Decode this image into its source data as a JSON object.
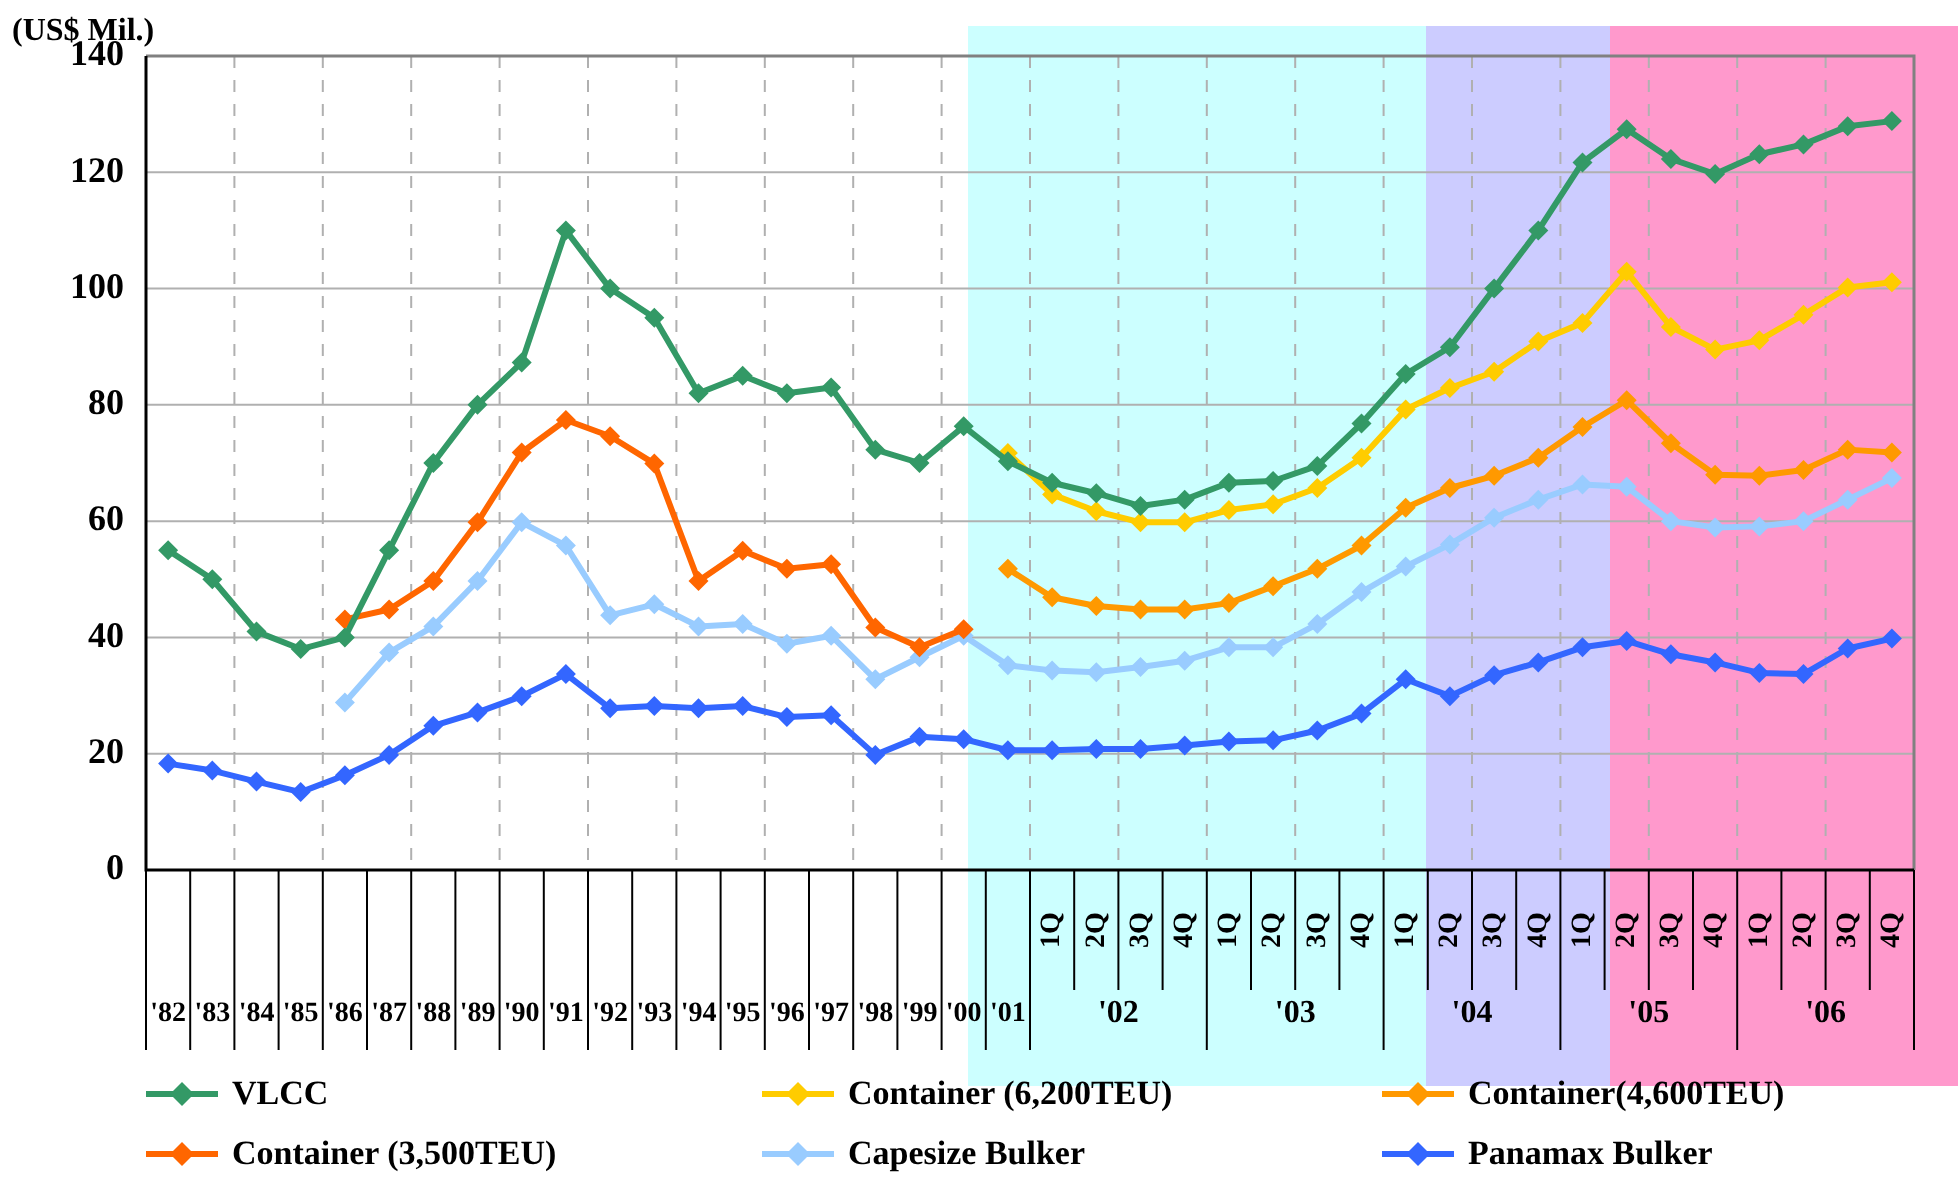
{
  "chart_data": {
    "type": "line",
    "ylabel": "(US$ Mil.)",
    "categories": [
      "'82",
      "'83",
      "'84",
      "'85",
      "'86",
      "'87",
      "'88",
      "'89",
      "'90",
      "'91",
      "'92",
      "'93",
      "'94",
      "'95",
      "'96",
      "'97",
      "'98",
      "'99",
      "'00",
      "'01",
      "1Q",
      "2Q",
      "3Q",
      "4Q",
      "1Q",
      "2Q",
      "3Q",
      "4Q",
      "1Q",
      "2Q",
      "3Q",
      "4Q",
      "1Q",
      "2Q",
      "3Q",
      "4Q",
      "1Q",
      "2Q",
      "3Q",
      "4Q"
    ],
    "series": [
      {
        "name": "VLCC",
        "color": "#339966",
        "values": [
          55,
          50,
          41,
          38,
          40,
          55,
          70,
          80,
          87.3,
          110,
          100,
          95,
          82,
          85,
          82,
          83,
          72.3,
          70,
          76.3,
          70.3,
          66.6,
          64.8,
          62.6,
          63.7,
          66.6,
          66.9,
          69.5,
          76.8,
          85.3,
          89.9,
          100,
          110,
          121.7,
          127.4,
          122.3,
          119.7,
          123.1,
          124.8,
          127.9,
          128.8
        ]
      },
      {
        "name": "Container (6,200TEU)",
        "color": "#ffcc00",
        "values": [
          null,
          null,
          null,
          null,
          null,
          null,
          null,
          null,
          null,
          null,
          null,
          null,
          null,
          null,
          null,
          null,
          null,
          null,
          null,
          71.7,
          64.6,
          61.7,
          59.8,
          59.8,
          61.9,
          62.9,
          65.7,
          70.9,
          79.2,
          82.9,
          85.7,
          90.9,
          94.1,
          102.9,
          93.4,
          89.5,
          91.1,
          95.5,
          100.2,
          101.1
        ]
      },
      {
        "name": "Container(4,600TEU)",
        "color": "#ff9900",
        "values": [
          null,
          null,
          null,
          null,
          null,
          null,
          null,
          null,
          null,
          null,
          null,
          null,
          null,
          null,
          null,
          null,
          null,
          null,
          null,
          51.8,
          46.9,
          45.4,
          44.8,
          44.8,
          45.9,
          48.8,
          51.8,
          55.8,
          62.3,
          65.7,
          67.8,
          70.9,
          76.2,
          80.8,
          73.4,
          68,
          67.8,
          68.8,
          72.3,
          71.8
        ]
      },
      {
        "name": "Container (3,500TEU)",
        "color": "#ff6600",
        "values": [
          null,
          null,
          null,
          null,
          43.1,
          44.8,
          49.7,
          59.8,
          71.8,
          77.4,
          74.6,
          69.9,
          49.7,
          54.9,
          51.8,
          52.6,
          41.7,
          38.3,
          41.4,
          null,
          null,
          null,
          null,
          null,
          null,
          null,
          null,
          null,
          null,
          null,
          null,
          null,
          null,
          null,
          null,
          null,
          null,
          null,
          null,
          null
        ]
      },
      {
        "name": "Capesize Bulker",
        "color": "#99ccff",
        "values": [
          null,
          null,
          null,
          null,
          28.8,
          37.4,
          41.9,
          49.7,
          59.8,
          55.8,
          43.8,
          45.7,
          41.9,
          42.3,
          38.9,
          40.3,
          32.8,
          36.6,
          40.3,
          35.2,
          34.3,
          34,
          34.9,
          36,
          38.3,
          38.3,
          42.3,
          47.8,
          52.2,
          56,
          60.6,
          63.7,
          66.3,
          65.9,
          60,
          58.9,
          59.1,
          60,
          63.7,
          67.4
        ]
      },
      {
        "name": "Panamax Bulker",
        "color": "#3366ff",
        "values": [
          18.3,
          17.1,
          15.2,
          13.4,
          16.3,
          19.8,
          24.8,
          27.1,
          29.9,
          33.7,
          27.8,
          28.2,
          27.8,
          28.2,
          26.3,
          26.6,
          19.8,
          22.9,
          22.5,
          20.6,
          20.6,
          20.8,
          20.8,
          21.4,
          22.1,
          22.3,
          24,
          26.9,
          32.8,
          29.9,
          33.5,
          35.7,
          38.3,
          39.4,
          37.1,
          35.7,
          33.9,
          33.7,
          38.1,
          39.8
        ]
      }
    ],
    "annotations": [
      "'02",
      "'03",
      "'04",
      "'05",
      "'06"
    ],
    "ylim": [
      0,
      140
    ],
    "yticks": [
      0,
      20,
      40,
      60,
      80,
      100,
      120,
      140
    ],
    "grid": true,
    "legend": "bottom",
    "marker": "diamond",
    "line_style": "solid"
  }
}
